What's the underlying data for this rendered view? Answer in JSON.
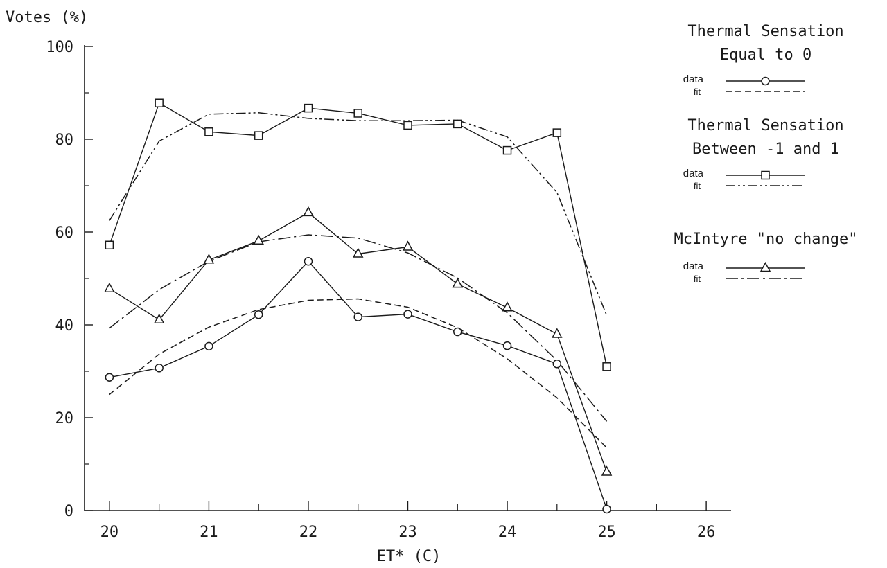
{
  "chart_data": {
    "type": "line",
    "ylabel": "Votes (%)",
    "xlabel": "ET* (C)",
    "xlim": [
      19.75,
      26.25
    ],
    "ylim": [
      0,
      100
    ],
    "x_ticks": [
      20,
      21,
      22,
      23,
      24,
      25,
      26
    ],
    "x_minor_ticks": [
      20.5,
      21.5,
      22.5,
      23.5,
      24.5,
      25.5
    ],
    "y_ticks": [
      0,
      20,
      40,
      60,
      80,
      100
    ],
    "y_minor_ticks": [
      10,
      30,
      50,
      70,
      90
    ],
    "legend_placement": "right",
    "legend_groups": [
      {
        "title_lines": [
          "Thermal Sensation",
          "Equal to 0"
        ],
        "data_label": "data",
        "fit_label": "fit",
        "marker": "circle",
        "fit_dash": "dashed"
      },
      {
        "title_lines": [
          "Thermal Sensation",
          "Between  -1 and 1"
        ],
        "data_label": "data",
        "fit_label": "fit",
        "marker": "square",
        "fit_dash": "dash-dot-dot"
      },
      {
        "title_lines": [
          "McIntyre \"no change\""
        ],
        "data_label": "data",
        "fit_label": "fit",
        "marker": "triangle",
        "fit_dash": "dash-dot"
      }
    ],
    "series": [
      {
        "marker": "square",
        "x": [
          20,
          20.5,
          21,
          21.5,
          22,
          22.5,
          23,
          23.5,
          24,
          24.5,
          25
        ],
        "values": [
          57.2,
          87.8,
          81.6,
          80.8,
          86.7,
          85.6,
          83.0,
          83.3,
          77.6,
          81.4,
          31.0
        ],
        "fit": [
          62.5,
          79.6,
          85.4,
          85.7,
          84.5,
          84.0,
          84.0,
          84.1,
          80.5,
          68.5,
          42.0
        ]
      },
      {
        "marker": "triangle",
        "x": [
          20,
          20.5,
          21,
          21.5,
          22,
          22.5,
          23,
          23.5,
          24,
          24.5,
          25
        ],
        "values": [
          47.8,
          41.1,
          54.0,
          58.1,
          64.2,
          55.3,
          56.8,
          48.8,
          43.7,
          38.0,
          8.3
        ],
        "fit": [
          39.3,
          47.6,
          53.7,
          57.9,
          59.4,
          58.7,
          55.5,
          50.1,
          42.6,
          32.3,
          19.2
        ]
      },
      {
        "marker": "circle",
        "x": [
          20,
          20.5,
          21,
          21.5,
          22,
          22.5,
          23,
          23.5,
          24,
          24.5,
          25
        ],
        "values": [
          28.7,
          30.7,
          35.4,
          42.2,
          53.7,
          41.7,
          42.3,
          38.5,
          35.5,
          31.6,
          0.3
        ],
        "fit": [
          25.0,
          33.7,
          39.5,
          43.3,
          45.3,
          45.6,
          43.8,
          39.4,
          32.7,
          24.3,
          13.5
        ]
      }
    ]
  }
}
